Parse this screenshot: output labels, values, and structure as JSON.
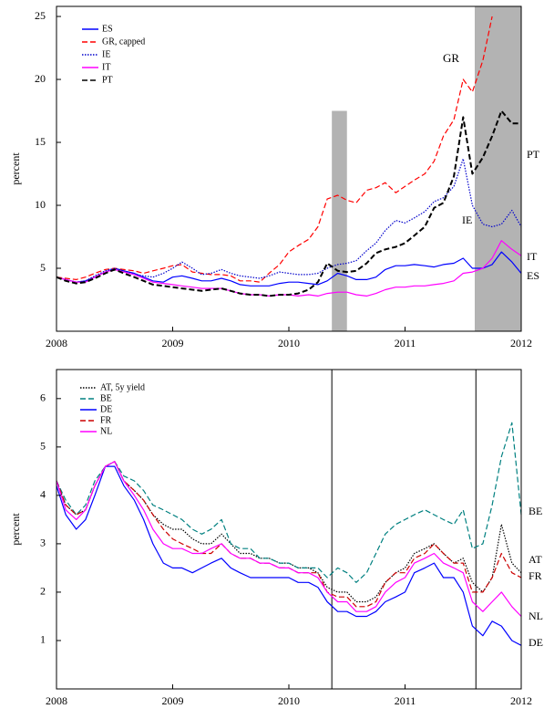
{
  "chart_data": [
    {
      "type": "line",
      "ylabel": "percent",
      "x": [
        2008,
        2008.08,
        2008.17,
        2008.25,
        2008.33,
        2008.42,
        2008.5,
        2008.58,
        2008.67,
        2008.75,
        2008.83,
        2008.92,
        2009,
        2009.08,
        2009.17,
        2009.25,
        2009.33,
        2009.42,
        2009.5,
        2009.58,
        2009.67,
        2009.75,
        2009.83,
        2009.92,
        2010,
        2010.08,
        2010.17,
        2010.25,
        2010.33,
        2010.42,
        2010.5,
        2010.58,
        2010.67,
        2010.75,
        2010.83,
        2010.92,
        2011,
        2011.08,
        2011.17,
        2011.25,
        2011.33,
        2011.42,
        2011.5,
        2011.58,
        2011.67,
        2011.75,
        2011.83,
        2011.92,
        2012
      ],
      "series": [
        {
          "name": "ES",
          "color": "#0000ff",
          "dash": "solid",
          "values": [
            4.3,
            4.1,
            3.9,
            4.0,
            4.3,
            4.7,
            5.0,
            4.8,
            4.6,
            4.3,
            4.0,
            3.9,
            4.3,
            4.4,
            4.2,
            4.0,
            4.0,
            4.2,
            4.0,
            3.7,
            3.6,
            3.6,
            3.6,
            3.8,
            3.9,
            3.9,
            3.8,
            3.7,
            4.0,
            4.6,
            4.4,
            4.1,
            4.1,
            4.3,
            4.9,
            5.2,
            5.2,
            5.3,
            5.2,
            5.1,
            5.3,
            5.4,
            5.8,
            5.0,
            5.0,
            5.3,
            6.3,
            5.5,
            4.6
          ]
        },
        {
          "name": "GR, capped",
          "color": "#ff0000",
          "dash": "dashed",
          "values": [
            4.3,
            4.2,
            4.1,
            4.3,
            4.6,
            4.9,
            5.0,
            4.9,
            4.8,
            4.6,
            4.8,
            5.0,
            5.2,
            5.3,
            4.7,
            4.6,
            4.5,
            4.5,
            4.4,
            4.0,
            4.0,
            3.9,
            4.6,
            5.3,
            6.3,
            6.8,
            7.3,
            8.3,
            10.5,
            10.8,
            10.4,
            10.2,
            11.2,
            11.4,
            11.8,
            11.0,
            11.5,
            12.0,
            12.5,
            13.5,
            15.5,
            16.8,
            20.0,
            19.0,
            21.5,
            25,
            null,
            null,
            null
          ]
        },
        {
          "name": "IE",
          "color": "#0000cc",
          "dash": "dotted",
          "values": [
            4.3,
            4.1,
            3.9,
            4.0,
            4.4,
            4.8,
            5.0,
            4.8,
            4.5,
            4.4,
            4.3,
            4.6,
            5.0,
            5.5,
            5.0,
            4.5,
            4.6,
            4.9,
            4.6,
            4.4,
            4.3,
            4.2,
            4.4,
            4.7,
            4.6,
            4.5,
            4.5,
            4.6,
            5.0,
            5.3,
            5.4,
            5.6,
            6.4,
            7.0,
            8.0,
            8.8,
            8.6,
            9.0,
            9.5,
            10.3,
            10.6,
            11.5,
            13.7,
            10.0,
            8.5,
            8.3,
            8.5,
            9.6,
            8.3
          ]
        },
        {
          "name": "IT",
          "color": "#ff00ff",
          "dash": "solid",
          "values": [
            4.3,
            4.1,
            3.9,
            3.9,
            4.3,
            4.7,
            4.9,
            4.7,
            4.5,
            4.2,
            3.9,
            3.8,
            3.7,
            3.6,
            3.5,
            3.4,
            3.4,
            3.4,
            3.2,
            3.0,
            2.9,
            2.9,
            2.8,
            2.9,
            2.9,
            2.8,
            2.9,
            2.8,
            3.0,
            3.1,
            3.1,
            2.9,
            2.8,
            3.0,
            3.3,
            3.5,
            3.5,
            3.6,
            3.6,
            3.7,
            3.8,
            4.0,
            4.6,
            4.7,
            5.0,
            5.8,
            7.2,
            6.5,
            6.0
          ]
        },
        {
          "name": "PT",
          "color": "#000000",
          "dash": "dashed",
          "values": [
            4.3,
            4.0,
            3.8,
            3.9,
            4.2,
            4.6,
            4.9,
            4.6,
            4.3,
            4.0,
            3.7,
            3.6,
            3.5,
            3.4,
            3.3,
            3.2,
            3.3,
            3.4,
            3.2,
            3.0,
            2.9,
            2.9,
            2.8,
            2.9,
            2.9,
            3.0,
            3.3,
            3.9,
            5.4,
            4.8,
            4.7,
            4.8,
            5.4,
            6.2,
            6.5,
            6.7,
            7.0,
            7.6,
            8.3,
            9.8,
            10.2,
            12.3,
            17.0,
            12.5,
            13.8,
            15.5,
            17.5,
            16.5,
            16.5
          ]
        }
      ],
      "xlim": [
        2008,
        2012
      ],
      "ylim": [
        0,
        25.8
      ],
      "xticks": [
        2008,
        2009,
        2010,
        2011,
        2012
      ],
      "yticks": [
        5,
        10,
        15,
        20,
        25
      ],
      "shaded": [
        {
          "x": [
            2010.37,
            2010.5
          ],
          "y": [
            0,
            17.5
          ]
        },
        {
          "x": [
            2011.6,
            2012
          ],
          "y": [
            0,
            25.8
          ]
        }
      ],
      "annotations": [
        "GR",
        "PT",
        "IE",
        "IT",
        "ES"
      ]
    },
    {
      "type": "line",
      "ylabel": "percent",
      "x": [
        2008,
        2008.08,
        2008.17,
        2008.25,
        2008.33,
        2008.42,
        2008.5,
        2008.58,
        2008.67,
        2008.75,
        2008.83,
        2008.92,
        2009,
        2009.08,
        2009.17,
        2009.25,
        2009.33,
        2009.42,
        2009.5,
        2009.58,
        2009.67,
        2009.75,
        2009.83,
        2009.92,
        2010,
        2010.08,
        2010.17,
        2010.25,
        2010.33,
        2010.42,
        2010.5,
        2010.58,
        2010.67,
        2010.75,
        2010.83,
        2010.92,
        2011,
        2011.08,
        2011.17,
        2011.25,
        2011.33,
        2011.42,
        2011.5,
        2011.58,
        2011.67,
        2011.75,
        2011.83,
        2011.92,
        2012
      ],
      "series": [
        {
          "name": "AT, 5y yield",
          "color": "#000000",
          "dash": "dotted",
          "values": [
            4.3,
            3.8,
            3.6,
            3.7,
            4.2,
            4.6,
            4.7,
            4.3,
            4.1,
            3.9,
            3.6,
            3.4,
            3.3,
            3.3,
            3.1,
            3.0,
            3.0,
            3.2,
            3.0,
            2.8,
            2.8,
            2.7,
            2.7,
            2.6,
            2.6,
            2.5,
            2.5,
            2.4,
            2.1,
            2.0,
            2.0,
            1.8,
            1.8,
            1.9,
            2.2,
            2.4,
            2.5,
            2.8,
            2.9,
            3.0,
            2.8,
            2.6,
            2.7,
            2.2,
            2.0,
            2.3,
            3.4,
            2.6,
            2.4
          ]
        },
        {
          "name": "BE",
          "color": "#008080",
          "dash": "dashed",
          "values": [
            4.3,
            3.9,
            3.6,
            3.8,
            4.3,
            4.6,
            4.7,
            4.4,
            4.3,
            4.1,
            3.8,
            3.7,
            3.6,
            3.5,
            3.3,
            3.2,
            3.3,
            3.5,
            3.0,
            2.9,
            2.9,
            2.7,
            2.7,
            2.6,
            2.6,
            2.5,
            2.5,
            2.5,
            2.3,
            2.5,
            2.4,
            2.2,
            2.4,
            2.8,
            3.2,
            3.4,
            3.5,
            3.6,
            3.7,
            3.6,
            3.5,
            3.4,
            3.7,
            2.9,
            3.0,
            3.8,
            4.8,
            5.5,
            3.6
          ]
        },
        {
          "name": "DE",
          "color": "#0000ff",
          "dash": "solid",
          "values": [
            4.2,
            3.6,
            3.3,
            3.5,
            4.0,
            4.6,
            4.6,
            4.2,
            3.9,
            3.5,
            3.0,
            2.6,
            2.5,
            2.5,
            2.4,
            2.5,
            2.6,
            2.7,
            2.5,
            2.4,
            2.3,
            2.3,
            2.3,
            2.3,
            2.3,
            2.2,
            2.2,
            2.1,
            1.8,
            1.6,
            1.6,
            1.5,
            1.5,
            1.6,
            1.8,
            1.9,
            2.0,
            2.4,
            2.5,
            2.6,
            2.3,
            2.3,
            2.0,
            1.3,
            1.1,
            1.4,
            1.3,
            1.0,
            0.9
          ]
        },
        {
          "name": "FR",
          "color": "#cc0000",
          "dash": "dashed",
          "values": [
            4.3,
            3.8,
            3.6,
            3.7,
            4.2,
            4.6,
            4.7,
            4.3,
            4.1,
            3.9,
            3.6,
            3.3,
            3.1,
            3.0,
            2.9,
            2.8,
            2.8,
            3.0,
            2.8,
            2.7,
            2.7,
            2.6,
            2.6,
            2.5,
            2.5,
            2.4,
            2.4,
            2.4,
            2.0,
            1.9,
            1.9,
            1.7,
            1.7,
            1.8,
            2.2,
            2.4,
            2.4,
            2.7,
            2.8,
            3.0,
            2.8,
            2.6,
            2.6,
            2.0,
            2.0,
            2.3,
            2.8,
            2.4,
            2.3
          ]
        },
        {
          "name": "NL",
          "color": "#ff00ff",
          "dash": "solid",
          "values": [
            4.3,
            3.7,
            3.5,
            3.7,
            4.2,
            4.6,
            4.7,
            4.3,
            4.0,
            3.7,
            3.3,
            3.0,
            2.9,
            2.9,
            2.8,
            2.8,
            2.9,
            3.0,
            2.8,
            2.7,
            2.7,
            2.6,
            2.6,
            2.5,
            2.5,
            2.4,
            2.4,
            2.3,
            2.0,
            1.8,
            1.8,
            1.6,
            1.6,
            1.7,
            2.0,
            2.2,
            2.3,
            2.6,
            2.7,
            2.8,
            2.6,
            2.5,
            2.4,
            1.8,
            1.6,
            1.8,
            2.0,
            1.7,
            1.5
          ]
        }
      ],
      "xlim": [
        2008,
        2012
      ],
      "ylim": [
        0,
        6.6
      ],
      "xticks": [
        2008,
        2009,
        2010,
        2011,
        2012
      ],
      "yticks": [
        1,
        2,
        3,
        4,
        5,
        6
      ],
      "vlines": [
        2010.37,
        2011.61
      ],
      "annotations": [
        "BE",
        "AT",
        "FR",
        "NL",
        "DE"
      ]
    }
  ]
}
